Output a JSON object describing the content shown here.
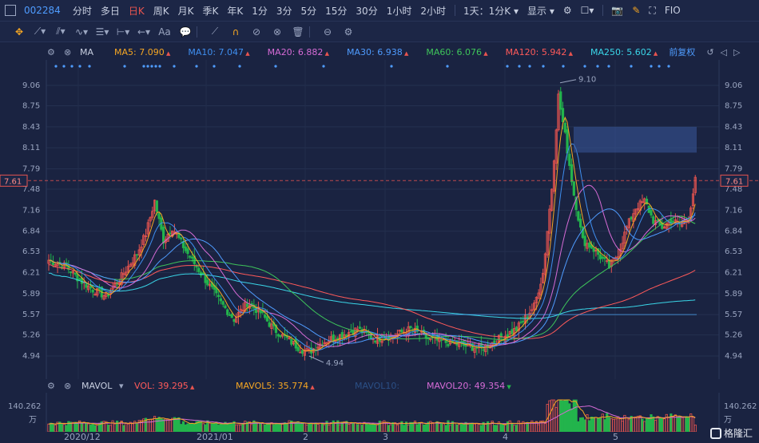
{
  "topbar": {
    "code": "002284",
    "periods": [
      "分时",
      "多日",
      "日K",
      "周K",
      "月K",
      "季K",
      "年K",
      "1分",
      "3分",
      "5分",
      "15分",
      "30分",
      "1小时",
      "2小时"
    ],
    "active_period": "日K",
    "interval_select": "1天：1分K",
    "display_select": "显示",
    "fio": "FIO"
  },
  "ma_bar": {
    "label": "MA",
    "ma5": "MA5: 7.090",
    "ma10": "MA10: 7.047",
    "ma20": "MA20: 6.882",
    "ma30": "MA30: 6.938",
    "ma60": "MA60: 6.076",
    "ma120": "MA120: 5.942",
    "ma250": "MA250: 5.602",
    "adjust": "前复权"
  },
  "vol_bar": {
    "label": "MAVOL",
    "vol": "VOL: 39.295",
    "mavol5": "MAVOL5: 35.774",
    "mavol10": "MAVOL10:",
    "mavol20": "MAVOL20: 49.354"
  },
  "axis": {
    "price_ticks": [
      "9.06",
      "8.75",
      "8.43",
      "8.11",
      "7.79",
      "7.48",
      "7.16",
      "6.84",
      "6.53",
      "6.21",
      "5.89",
      "5.57",
      "5.26",
      "4.94"
    ],
    "current_price": "7.61",
    "high_label": "9.10",
    "low_label": "4.94",
    "vol_top": "140.262",
    "vol_unit": "万",
    "dates": [
      "2020/12",
      "2021/01",
      "2",
      "3",
      "4",
      "5"
    ]
  },
  "colors": {
    "up": "#e8544f",
    "down": "#23b44c",
    "ma5": "#f5a623",
    "ma10": "#3f8ff0",
    "ma20": "#d66bd6",
    "ma30": "#4f9cff",
    "ma60": "#3ec45a",
    "ma120": "#ff5a5a",
    "ma250": "#3ad6e8"
  },
  "watermark": "格隆汇",
  "chart_data": {
    "type": "candlestick",
    "title": "002284",
    "xlabel": "",
    "ylabel": "",
    "ylim": [
      4.8,
      9.2
    ],
    "high": 9.1,
    "low": 4.94,
    "last": 7.61,
    "series": [
      {
        "name": "MA5",
        "values": [
          7.09
        ]
      },
      {
        "name": "MA10",
        "values": [
          7.047
        ]
      },
      {
        "name": "MA20",
        "values": [
          6.882
        ]
      },
      {
        "name": "MA30",
        "values": [
          6.938
        ]
      },
      {
        "name": "MA60",
        "values": [
          6.076
        ]
      },
      {
        "name": "MA120",
        "values": [
          5.942
        ]
      },
      {
        "name": "MA250",
        "values": [
          5.602
        ]
      }
    ],
    "volume": {
      "vol": 39.295,
      "mavol5": 35.774,
      "mavol20": 49.354,
      "max": 140.262
    }
  }
}
